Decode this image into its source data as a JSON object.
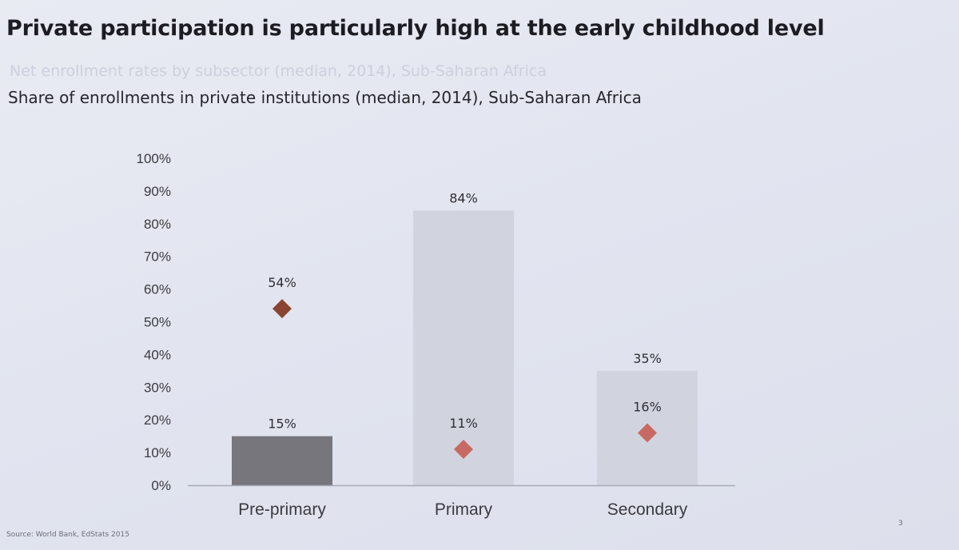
{
  "slide": {
    "title": "Private participation is particularly high at the early childhood level",
    "ghost_subtitle": "Net enrollment rates by subsector (median, 2014), Sub-Saharan Africa",
    "subtitle": "Share of enrollments in private institutions (median, 2014), Sub-Saharan Africa",
    "source": "Source: World Bank, EdStats 2015",
    "page_number": "3"
  },
  "colors": {
    "bar_highlight": "#77767c",
    "bar_muted": "#d1d4de",
    "marker_highlight": "#8a4430",
    "marker_muted": "#c86a64",
    "axis": "#a8abb6"
  },
  "chart_data": {
    "type": "bar",
    "categories": [
      "Pre-primary",
      "Primary",
      "Secondary"
    ],
    "series": [
      {
        "type": "bar",
        "values": [
          15,
          84,
          35
        ],
        "labels": [
          "15%",
          "84%",
          "35%"
        ]
      },
      {
        "type": "scatter",
        "marker": "diamond",
        "values": [
          54,
          11,
          16
        ],
        "labels": [
          "54%",
          "11%",
          "16%"
        ]
      }
    ],
    "ylim": [
      0,
      100
    ],
    "yticks": [
      0,
      10,
      20,
      30,
      40,
      50,
      60,
      70,
      80,
      90,
      100
    ],
    "ytick_labels": [
      "0%",
      "10%",
      "20%",
      "30%",
      "40%",
      "50%",
      "60%",
      "70%",
      "80%",
      "90%",
      "100%"
    ],
    "xlabel": "",
    "ylabel": "",
    "grid": false,
    "legend": "none"
  }
}
